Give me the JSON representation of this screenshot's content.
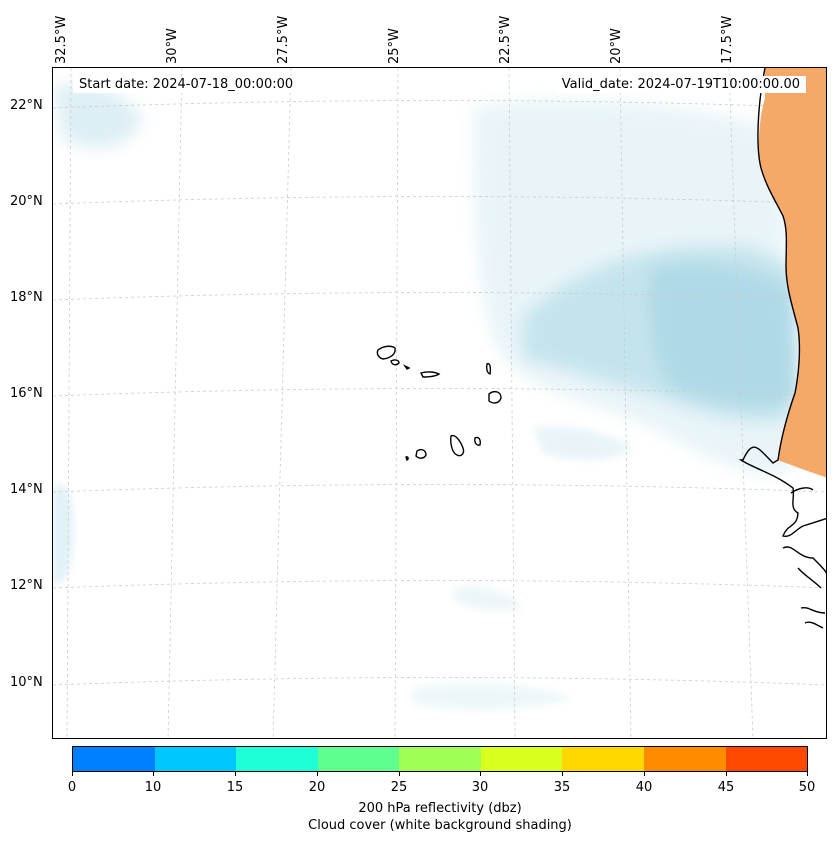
{
  "map": {
    "start_date": "Start date: 2024-07-18_00:00:00",
    "valid_date": "Valid_date: 2024-07-19T10:00:00.00",
    "lon_labels": [
      "32.5°W",
      "30°W",
      "27.5°W",
      "25°W",
      "22.5°W",
      "20°W",
      "17.5°W"
    ],
    "lat_labels": [
      "22°N",
      "20°N",
      "18°N",
      "16°N",
      "14°N",
      "12°N",
      "10°N"
    ],
    "region": "Cape Verde islands and West African coast"
  },
  "colorbar": {
    "ticks": [
      "0",
      "10",
      "15",
      "20",
      "25",
      "30",
      "35",
      "40",
      "45",
      "50"
    ],
    "colors": [
      "#0080ff",
      "#00c8ff",
      "#1effd8",
      "#5fff8f",
      "#9fff55",
      "#d8ff1e",
      "#ffd800",
      "#ff8c00",
      "#ff4800"
    ],
    "label": "200 hPa reflectivity (dbz)",
    "sublabel": "Cloud cover (white background shading)"
  },
  "colors": {
    "cloud": "#add8e6",
    "land_shading": "#f4a460",
    "coastline": "#000000",
    "grid": "#cccccc"
  }
}
